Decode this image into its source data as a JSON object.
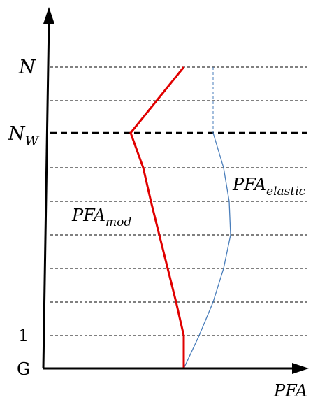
{
  "floor_labels": {
    "top": "N",
    "wall": "N",
    "wall_sub": "W",
    "first": "1",
    "ground": "G"
  },
  "curves": {
    "mod": {
      "base": "PFA",
      "sub": "mod",
      "color": "#e00000"
    },
    "elastic": {
      "base": "PFA",
      "sub": "elastic",
      "color": "#4a7ebb"
    }
  },
  "axis": {
    "x_label": "PFA"
  },
  "colors": {
    "axis": "#000000",
    "grid": "#000000"
  }
}
